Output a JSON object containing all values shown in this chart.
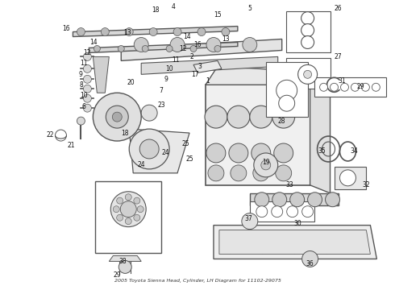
{
  "title": "2005 Toyota Sienna Head, Cylinder, LH Diagram for 11102-29075",
  "bg_color": "#ffffff",
  "line_color": "#555555",
  "fig_width": 4.9,
  "fig_height": 3.6,
  "dpi": 100,
  "label_fontsize": 5.0
}
